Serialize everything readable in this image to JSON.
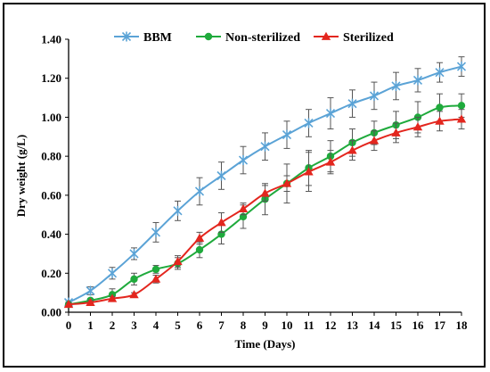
{
  "chart_data": {
    "type": "line",
    "xlabel": "Time (Days)",
    "ylabel": "Dry weight (g/L)",
    "xlim": [
      0,
      18
    ],
    "ylim": [
      0,
      1.4
    ],
    "x_ticks": [
      "0",
      "1",
      "2",
      "3",
      "4",
      "5",
      "6",
      "7",
      "8",
      "9",
      "10",
      "11",
      "12",
      "13",
      "14",
      "15",
      "16",
      "17",
      "18"
    ],
    "y_ticks": [
      "0.00",
      "0.20",
      "0.40",
      "0.60",
      "0.80",
      "1.00",
      "1.20",
      "1.40"
    ],
    "grid": false,
    "legend_position": "top",
    "x": [
      0,
      1,
      2,
      3,
      4,
      5,
      6,
      7,
      8,
      9,
      10,
      11,
      12,
      13,
      14,
      15,
      16,
      17,
      18
    ],
    "series": [
      {
        "name": "BBM",
        "color": "#5ba3d6",
        "marker": "asterisk",
        "values": [
          0.05,
          0.11,
          0.2,
          0.3,
          0.41,
          0.52,
          0.62,
          0.7,
          0.78,
          0.85,
          0.91,
          0.97,
          1.02,
          1.07,
          1.11,
          1.16,
          1.19,
          1.23,
          1.26
        ],
        "errors": [
          0.01,
          0.02,
          0.03,
          0.03,
          0.05,
          0.05,
          0.07,
          0.07,
          0.07,
          0.07,
          0.07,
          0.07,
          0.08,
          0.07,
          0.07,
          0.07,
          0.06,
          0.05,
          0.05
        ]
      },
      {
        "name": "Non-sterilized",
        "color": "#1faa3c",
        "marker": "circle",
        "values": [
          0.04,
          0.06,
          0.09,
          0.17,
          0.22,
          0.25,
          0.32,
          0.4,
          0.49,
          0.58,
          0.66,
          0.74,
          0.8,
          0.87,
          0.92,
          0.96,
          1.0,
          1.05,
          1.06
        ],
        "errors": [
          0.01,
          0.01,
          0.03,
          0.03,
          0.02,
          0.03,
          0.04,
          0.05,
          0.06,
          0.08,
          0.1,
          0.09,
          0.08,
          0.07,
          0.06,
          0.07,
          0.08,
          0.07,
          0.06
        ]
      },
      {
        "name": "Sterilized",
        "color": "#e3261e",
        "marker": "triangle",
        "values": [
          0.04,
          0.05,
          0.07,
          0.09,
          0.17,
          0.26,
          0.38,
          0.46,
          0.53,
          0.61,
          0.66,
          0.72,
          0.77,
          0.83,
          0.88,
          0.92,
          0.95,
          0.98,
          0.99
        ],
        "errors": [
          0.01,
          0.01,
          0.01,
          0.01,
          0.02,
          0.03,
          0.03,
          0.05,
          0.03,
          0.04,
          0.04,
          0.1,
          0.06,
          0.05,
          0.05,
          0.05,
          0.05,
          0.05,
          0.05
        ]
      }
    ]
  }
}
